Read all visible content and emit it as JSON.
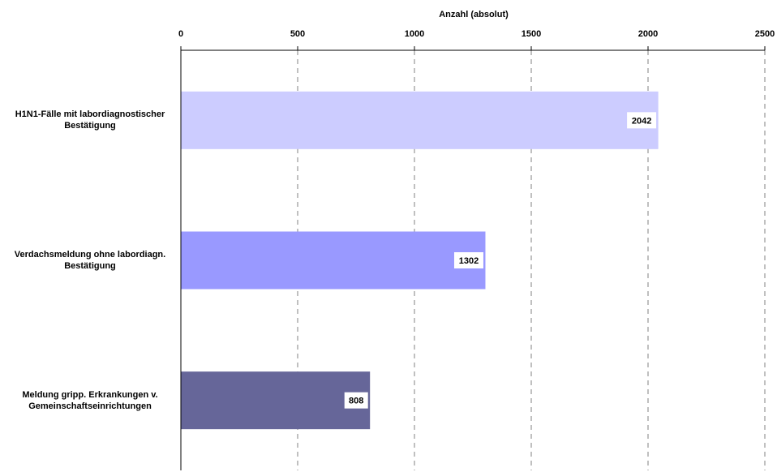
{
  "chart_data": {
    "type": "bar",
    "orientation": "horizontal",
    "title": "",
    "xlabel": "Anzahl (absolut)",
    "ylabel": "",
    "xlim": [
      0,
      2500
    ],
    "x_ticks": [
      "0",
      "500",
      "1000",
      "1500",
      "2000",
      "2500"
    ],
    "x_axis_position": "top",
    "grid": "vertical dashed",
    "categories": [
      [
        "H1N1-Fälle mit labordiagnostischer",
        "Bestätigung"
      ],
      [
        "Verdachsmeldung ohne labordiagn.",
        "Bestätigung"
      ],
      [
        "Meldung gripp. Erkrankungen v.",
        "Gemeinschaftseinrichtungen"
      ]
    ],
    "values": [
      2042,
      1302,
      808
    ],
    "data_labels": [
      "2042",
      "1302",
      "808"
    ],
    "bar_colors": [
      "#ccccff",
      "#9999ff",
      "#666699"
    ]
  }
}
